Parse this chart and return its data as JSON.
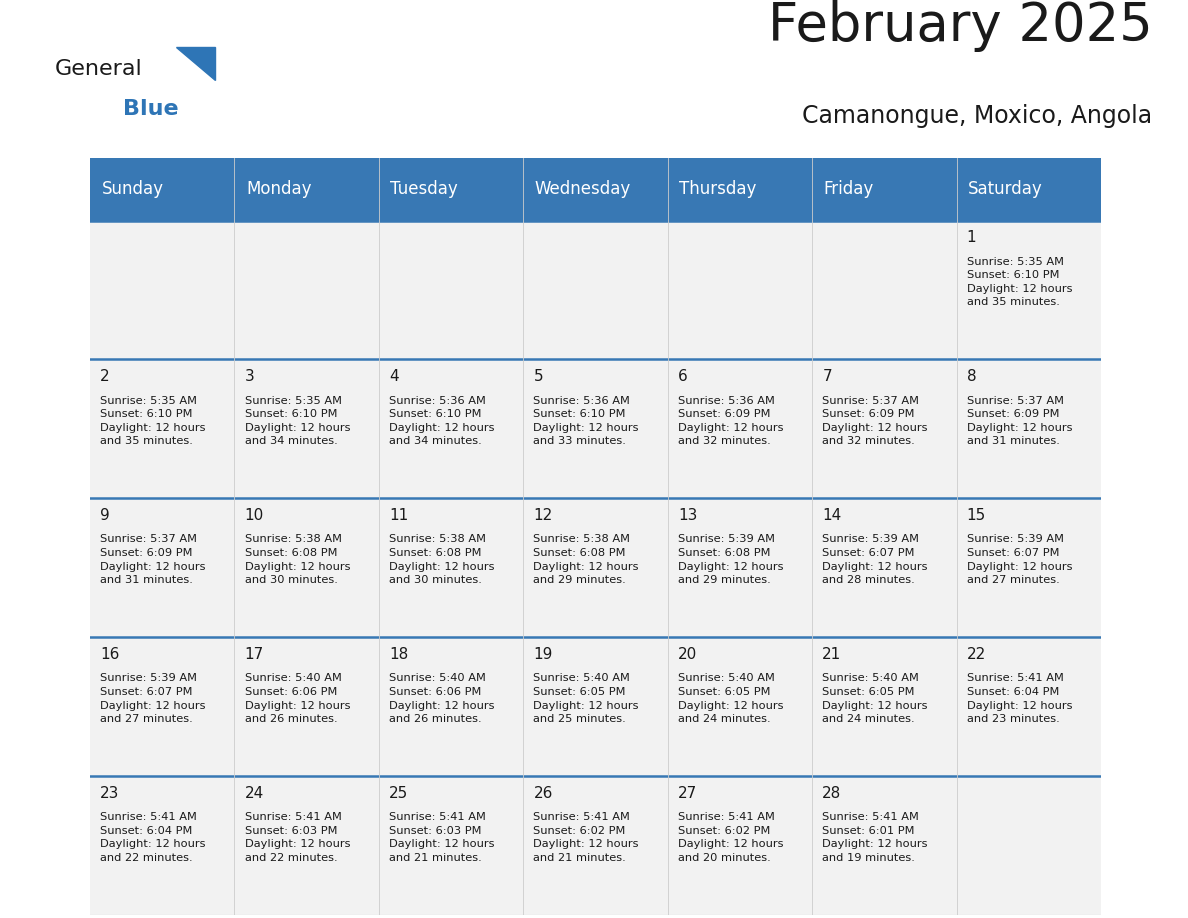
{
  "title": "February 2025",
  "subtitle": "Camanongue, Moxico, Angola",
  "header_bg_color": "#3878b4",
  "header_text_color": "#ffffff",
  "cell_bg_color": "#f2f2f2",
  "grid_line_color": "#3878b4",
  "inner_grid_color": "#cccccc",
  "day_headers": [
    "Sunday",
    "Monday",
    "Tuesday",
    "Wednesday",
    "Thursday",
    "Friday",
    "Saturday"
  ],
  "title_fontsize": 38,
  "subtitle_fontsize": 17,
  "header_fontsize": 12,
  "day_num_fontsize": 11,
  "cell_text_fontsize": 8.2,
  "days": [
    {
      "date": 1,
      "row": 0,
      "col": 6,
      "sunrise": "5:35 AM",
      "sunset": "6:10 PM",
      "daylight_hours": 12,
      "daylight_minutes": 35
    },
    {
      "date": 2,
      "row": 1,
      "col": 0,
      "sunrise": "5:35 AM",
      "sunset": "6:10 PM",
      "daylight_hours": 12,
      "daylight_minutes": 35
    },
    {
      "date": 3,
      "row": 1,
      "col": 1,
      "sunrise": "5:35 AM",
      "sunset": "6:10 PM",
      "daylight_hours": 12,
      "daylight_minutes": 34
    },
    {
      "date": 4,
      "row": 1,
      "col": 2,
      "sunrise": "5:36 AM",
      "sunset": "6:10 PM",
      "daylight_hours": 12,
      "daylight_minutes": 34
    },
    {
      "date": 5,
      "row": 1,
      "col": 3,
      "sunrise": "5:36 AM",
      "sunset": "6:10 PM",
      "daylight_hours": 12,
      "daylight_minutes": 33
    },
    {
      "date": 6,
      "row": 1,
      "col": 4,
      "sunrise": "5:36 AM",
      "sunset": "6:09 PM",
      "daylight_hours": 12,
      "daylight_minutes": 32
    },
    {
      "date": 7,
      "row": 1,
      "col": 5,
      "sunrise": "5:37 AM",
      "sunset": "6:09 PM",
      "daylight_hours": 12,
      "daylight_minutes": 32
    },
    {
      "date": 8,
      "row": 1,
      "col": 6,
      "sunrise": "5:37 AM",
      "sunset": "6:09 PM",
      "daylight_hours": 12,
      "daylight_minutes": 31
    },
    {
      "date": 9,
      "row": 2,
      "col": 0,
      "sunrise": "5:37 AM",
      "sunset": "6:09 PM",
      "daylight_hours": 12,
      "daylight_minutes": 31
    },
    {
      "date": 10,
      "row": 2,
      "col": 1,
      "sunrise": "5:38 AM",
      "sunset": "6:08 PM",
      "daylight_hours": 12,
      "daylight_minutes": 30
    },
    {
      "date": 11,
      "row": 2,
      "col": 2,
      "sunrise": "5:38 AM",
      "sunset": "6:08 PM",
      "daylight_hours": 12,
      "daylight_minutes": 30
    },
    {
      "date": 12,
      "row": 2,
      "col": 3,
      "sunrise": "5:38 AM",
      "sunset": "6:08 PM",
      "daylight_hours": 12,
      "daylight_minutes": 29
    },
    {
      "date": 13,
      "row": 2,
      "col": 4,
      "sunrise": "5:39 AM",
      "sunset": "6:08 PM",
      "daylight_hours": 12,
      "daylight_minutes": 29
    },
    {
      "date": 14,
      "row": 2,
      "col": 5,
      "sunrise": "5:39 AM",
      "sunset": "6:07 PM",
      "daylight_hours": 12,
      "daylight_minutes": 28
    },
    {
      "date": 15,
      "row": 2,
      "col": 6,
      "sunrise": "5:39 AM",
      "sunset": "6:07 PM",
      "daylight_hours": 12,
      "daylight_minutes": 27
    },
    {
      "date": 16,
      "row": 3,
      "col": 0,
      "sunrise": "5:39 AM",
      "sunset": "6:07 PM",
      "daylight_hours": 12,
      "daylight_minutes": 27
    },
    {
      "date": 17,
      "row": 3,
      "col": 1,
      "sunrise": "5:40 AM",
      "sunset": "6:06 PM",
      "daylight_hours": 12,
      "daylight_minutes": 26
    },
    {
      "date": 18,
      "row": 3,
      "col": 2,
      "sunrise": "5:40 AM",
      "sunset": "6:06 PM",
      "daylight_hours": 12,
      "daylight_minutes": 26
    },
    {
      "date": 19,
      "row": 3,
      "col": 3,
      "sunrise": "5:40 AM",
      "sunset": "6:05 PM",
      "daylight_hours": 12,
      "daylight_minutes": 25
    },
    {
      "date": 20,
      "row": 3,
      "col": 4,
      "sunrise": "5:40 AM",
      "sunset": "6:05 PM",
      "daylight_hours": 12,
      "daylight_minutes": 24
    },
    {
      "date": 21,
      "row": 3,
      "col": 5,
      "sunrise": "5:40 AM",
      "sunset": "6:05 PM",
      "daylight_hours": 12,
      "daylight_minutes": 24
    },
    {
      "date": 22,
      "row": 3,
      "col": 6,
      "sunrise": "5:41 AM",
      "sunset": "6:04 PM",
      "daylight_hours": 12,
      "daylight_minutes": 23
    },
    {
      "date": 23,
      "row": 4,
      "col": 0,
      "sunrise": "5:41 AM",
      "sunset": "6:04 PM",
      "daylight_hours": 12,
      "daylight_minutes": 22
    },
    {
      "date": 24,
      "row": 4,
      "col": 1,
      "sunrise": "5:41 AM",
      "sunset": "6:03 PM",
      "daylight_hours": 12,
      "daylight_minutes": 22
    },
    {
      "date": 25,
      "row": 4,
      "col": 2,
      "sunrise": "5:41 AM",
      "sunset": "6:03 PM",
      "daylight_hours": 12,
      "daylight_minutes": 21
    },
    {
      "date": 26,
      "row": 4,
      "col": 3,
      "sunrise": "5:41 AM",
      "sunset": "6:02 PM",
      "daylight_hours": 12,
      "daylight_minutes": 21
    },
    {
      "date": 27,
      "row": 4,
      "col": 4,
      "sunrise": "5:41 AM",
      "sunset": "6:02 PM",
      "daylight_hours": 12,
      "daylight_minutes": 20
    },
    {
      "date": 28,
      "row": 4,
      "col": 5,
      "sunrise": "5:41 AM",
      "sunset": "6:01 PM",
      "daylight_hours": 12,
      "daylight_minutes": 19
    }
  ],
  "num_rows": 5,
  "num_cols": 7,
  "logo_text_general": "General",
  "logo_text_blue": "Blue",
  "logo_triangle_color": "#2e75b6",
  "logo_general_color": "#1a1a1a",
  "logo_blue_color": "#2e75b6"
}
